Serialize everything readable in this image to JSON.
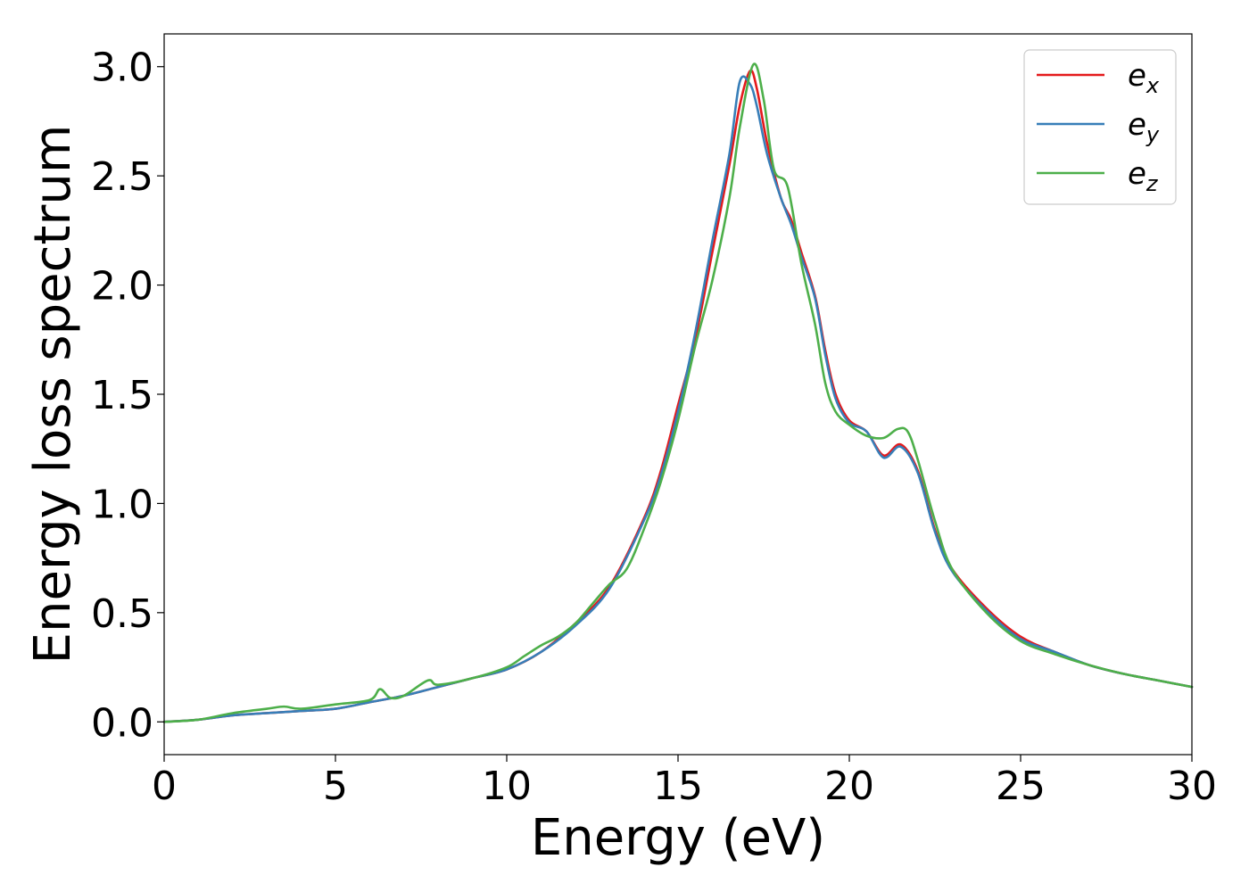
{
  "chart_data": {
    "type": "line",
    "title": "",
    "xlabel": "Energy (eV)",
    "ylabel": "Energy loss spectrum",
    "xlim": [
      0,
      30
    ],
    "ylim": [
      -0.15,
      3.15
    ],
    "xticks": [
      0,
      5,
      10,
      15,
      20,
      25,
      30
    ],
    "xtick_labels": [
      "0",
      "5",
      "10",
      "15",
      "20",
      "25",
      "30"
    ],
    "yticks": [
      0.0,
      0.5,
      1.0,
      1.5,
      2.0,
      2.5,
      3.0
    ],
    "ytick_labels": [
      "0.0",
      "0.5",
      "1.0",
      "1.5",
      "2.0",
      "2.5",
      "3.0"
    ],
    "grid": false,
    "legend_position": "top-right",
    "series": [
      {
        "name": "e_x",
        "legend_base": "e",
        "legend_sub": "x",
        "color": "#e41a1c",
        "x": [
          0,
          1,
          2,
          3,
          4,
          5,
          6,
          7,
          8,
          9,
          10,
          11,
          12,
          13,
          14,
          14.5,
          15,
          15.5,
          16,
          16.5,
          16.8,
          17.1,
          17.3,
          17.6,
          18,
          18.3,
          18.6,
          19,
          19.3,
          19.6,
          20,
          20.5,
          21,
          21.5,
          22,
          22.5,
          23,
          24,
          25,
          26,
          27,
          28,
          29,
          30
        ],
        "y": [
          0.0,
          0.01,
          0.03,
          0.04,
          0.05,
          0.06,
          0.09,
          0.12,
          0.16,
          0.2,
          0.24,
          0.32,
          0.45,
          0.62,
          0.93,
          1.15,
          1.45,
          1.75,
          2.15,
          2.55,
          2.82,
          2.98,
          2.9,
          2.65,
          2.4,
          2.3,
          2.15,
          1.95,
          1.7,
          1.5,
          1.38,
          1.33,
          1.22,
          1.27,
          1.15,
          0.88,
          0.7,
          0.52,
          0.39,
          0.32,
          0.26,
          0.22,
          0.19,
          0.16
        ]
      },
      {
        "name": "e_y",
        "legend_base": "e",
        "legend_sub": "y",
        "color": "#377eb8",
        "x": [
          0,
          1,
          2,
          3,
          4,
          5,
          6,
          7,
          8,
          9,
          10,
          11,
          12,
          13,
          14,
          14.5,
          15,
          15.5,
          16,
          16.5,
          16.8,
          17.1,
          17.3,
          17.6,
          18,
          18.3,
          18.6,
          19,
          19.3,
          19.6,
          20,
          20.5,
          21,
          21.5,
          22,
          22.5,
          23,
          24,
          25,
          26,
          27,
          28,
          29,
          30
        ],
        "y": [
          0.0,
          0.01,
          0.03,
          0.04,
          0.05,
          0.06,
          0.09,
          0.12,
          0.16,
          0.2,
          0.24,
          0.32,
          0.44,
          0.61,
          0.92,
          1.13,
          1.42,
          1.78,
          2.2,
          2.6,
          2.93,
          2.92,
          2.82,
          2.6,
          2.4,
          2.28,
          2.13,
          1.94,
          1.68,
          1.48,
          1.37,
          1.33,
          1.21,
          1.26,
          1.14,
          0.87,
          0.69,
          0.51,
          0.38,
          0.32,
          0.26,
          0.22,
          0.19,
          0.16
        ]
      },
      {
        "name": "e_z",
        "legend_base": "e",
        "legend_sub": "z",
        "color": "#4daf4a",
        "x": [
          0,
          1,
          2,
          3,
          3.5,
          4,
          5,
          6,
          6.3,
          6.6,
          7,
          7.7,
          8,
          9,
          10,
          10.5,
          11,
          11.5,
          12,
          12.5,
          13,
          13.5,
          14,
          14.5,
          15,
          15.5,
          16,
          16.5,
          16.8,
          17.2,
          17.5,
          17.8,
          18.2,
          18.6,
          19,
          19.3,
          19.6,
          20,
          20.5,
          21,
          21.4,
          21.7,
          22,
          22.5,
          23,
          24,
          25,
          26,
          27,
          28,
          29,
          30
        ],
        "y": [
          0.0,
          0.01,
          0.04,
          0.06,
          0.07,
          0.06,
          0.08,
          0.1,
          0.15,
          0.11,
          0.12,
          0.19,
          0.17,
          0.2,
          0.25,
          0.3,
          0.35,
          0.39,
          0.45,
          0.54,
          0.63,
          0.7,
          0.88,
          1.1,
          1.38,
          1.72,
          2.02,
          2.4,
          2.72,
          3.01,
          2.85,
          2.53,
          2.45,
          2.1,
          1.82,
          1.55,
          1.42,
          1.36,
          1.31,
          1.3,
          1.34,
          1.33,
          1.2,
          0.92,
          0.7,
          0.5,
          0.37,
          0.31,
          0.26,
          0.22,
          0.19,
          0.16
        ]
      }
    ]
  }
}
